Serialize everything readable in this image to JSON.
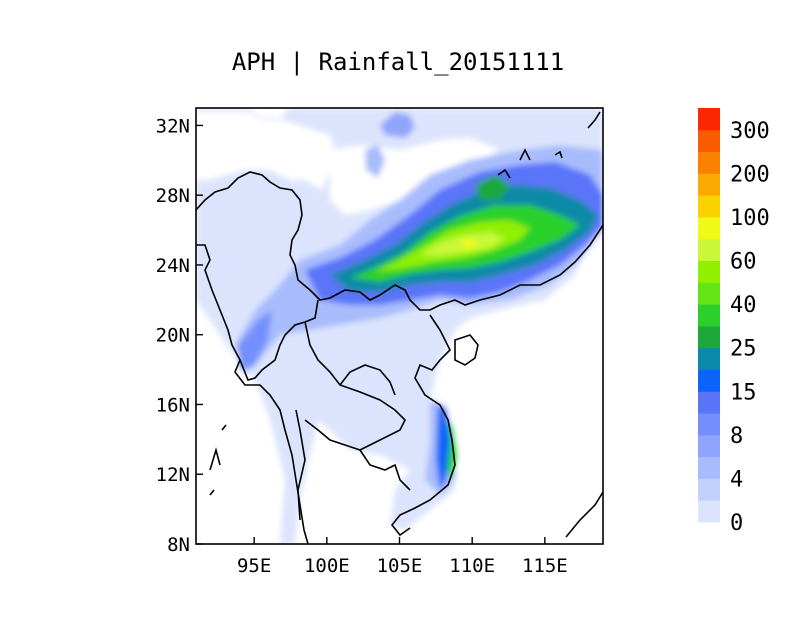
{
  "title": "APH | Rainfall_20151111",
  "map": {
    "lon_range": [
      91,
      119
    ],
    "lat_range": [
      8,
      33
    ],
    "x_ticks": [
      {
        "value": 95,
        "label": "95E"
      },
      {
        "value": 100,
        "label": "100E"
      },
      {
        "value": 105,
        "label": "105E"
      },
      {
        "value": 110,
        "label": "110E"
      },
      {
        "value": 115,
        "label": "115E"
      }
    ],
    "y_ticks": [
      {
        "value": 8,
        "label": "8N"
      },
      {
        "value": 12,
        "label": "12N"
      },
      {
        "value": 16,
        "label": "16N"
      },
      {
        "value": 20,
        "label": "20N"
      },
      {
        "value": 24,
        "label": "24N"
      },
      {
        "value": 28,
        "label": "28N"
      },
      {
        "value": 32,
        "label": "32N"
      }
    ]
  },
  "colorbar": {
    "colors": [
      "#dbe4fc",
      "#c2d1fc",
      "#a8bcfc",
      "#8fa6fc",
      "#7590fc",
      "#5a74f8",
      "#0a64fa",
      "#0a8aa8",
      "#1ea83c",
      "#2cd02c",
      "#64e414",
      "#90f000",
      "#c8f838",
      "#f0fa14",
      "#fad200",
      "#faaa00",
      "#fa8200",
      "#fa5a00",
      "#fa2800"
    ],
    "labels": [
      "0",
      "4",
      "8",
      "15",
      "25",
      "40",
      "60",
      "100",
      "200",
      "300"
    ]
  }
}
